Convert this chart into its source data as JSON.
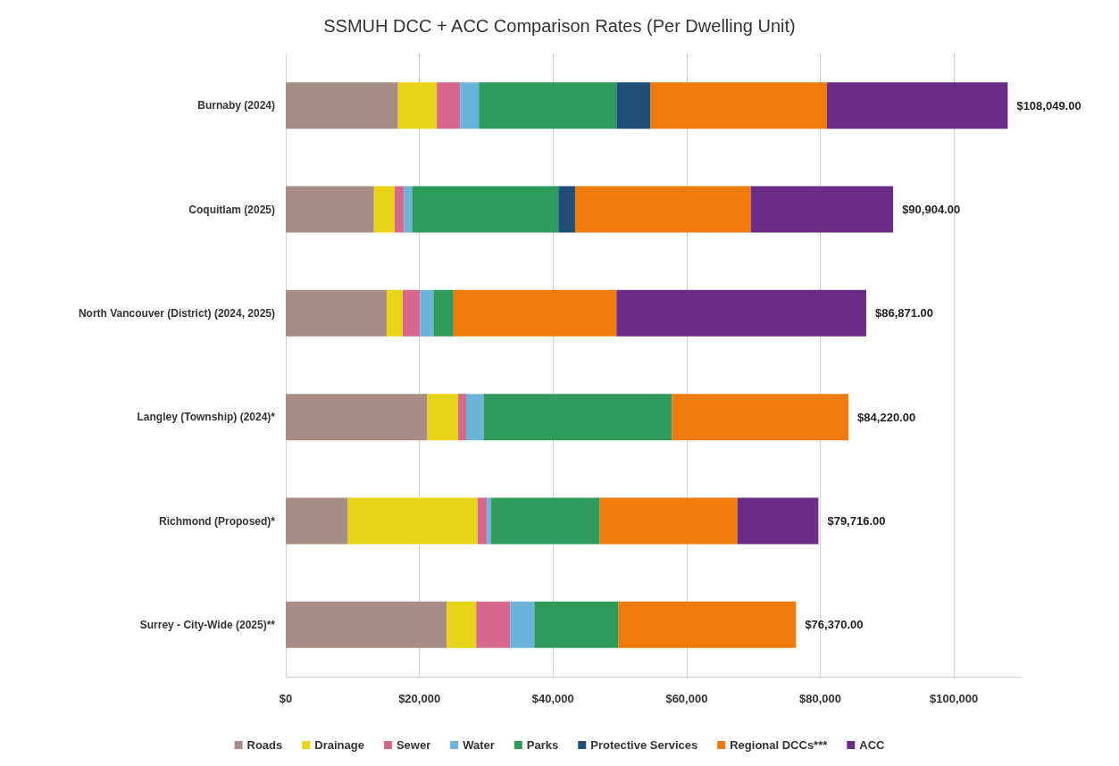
{
  "chart_data": {
    "type": "bar",
    "orientation": "horizontal",
    "stacked": true,
    "title": "SSMUH DCC + ACC Comparison Rates (Per Dwelling Unit)",
    "categories": [
      "Burnaby (2024)",
      "Coquitlam (2025)",
      "North Vancouver (District) (2024, 2025)",
      "Langley (Township) (2024)*",
      "Richmond (Proposed)*",
      "Surrey - City-Wide (2025)**"
    ],
    "series": [
      {
        "name": "Roads",
        "color": "#a78d86",
        "values": [
          16800,
          13200,
          15100,
          21200,
          9300,
          24100
        ]
      },
      {
        "name": "Drainage",
        "color": "#e8d416",
        "values": [
          5800,
          3100,
          2400,
          4600,
          19400,
          4400
        ]
      },
      {
        "name": "Sewer",
        "color": "#d6688e",
        "values": [
          3500,
          1400,
          2600,
          1200,
          1400,
          5100
        ]
      },
      {
        "name": "Water",
        "color": "#6bb3d9",
        "values": [
          2800,
          1200,
          2000,
          2600,
          600,
          3600
        ]
      },
      {
        "name": "Parks",
        "color": "#2e9b5a",
        "values": [
          20600,
          21900,
          3000,
          28200,
          16300,
          12600
        ]
      },
      {
        "name": "Protective Services",
        "color": "#1f4e79",
        "values": [
          5100,
          2500,
          null,
          null,
          null,
          null
        ]
      },
      {
        "name": "Regional DCCs***",
        "color": "#ee7b0c",
        "values": [
          26400,
          26300,
          24400,
          26420,
          20600,
          26570
        ]
      },
      {
        "name": "ACC",
        "color": "#6a2c85",
        "values": [
          27049,
          21304,
          37371,
          null,
          12116,
          null
        ]
      }
    ],
    "totals": [
      "$108,049.00",
      "$90,904.00",
      "$86,871.00",
      "$84,220.00",
      "$79,716.00",
      "$76,370.00"
    ],
    "xlim": [
      0,
      110000
    ],
    "xticks": [
      {
        "value": 0,
        "label": "$0"
      },
      {
        "value": 20000,
        "label": "$20,000"
      },
      {
        "value": 40000,
        "label": "$40,000"
      },
      {
        "value": 60000,
        "label": "$60,000"
      },
      {
        "value": 80000,
        "label": "$80,000"
      },
      {
        "value": 100000,
        "label": "$100,000"
      }
    ],
    "grid": "x",
    "legend": "bottom"
  }
}
